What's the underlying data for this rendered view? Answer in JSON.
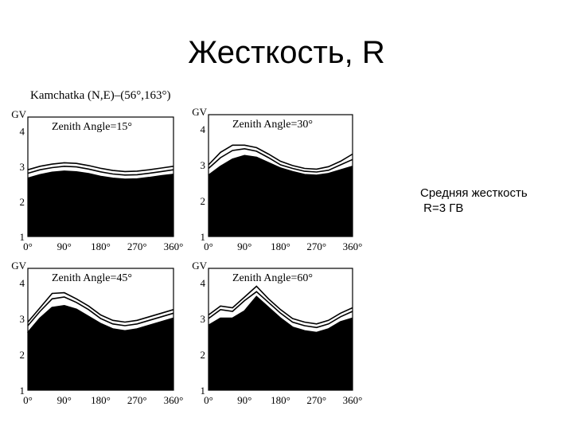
{
  "slide": {
    "title": "Жесткость, R",
    "figure_caption": "Kamchatka (N,E)–(56°,163°)",
    "note_line1": "Средняя жесткость",
    "note_line2": " R=3 ГВ"
  },
  "chart_data": [
    {
      "type": "area",
      "title": "Zenith Angle=15°",
      "ylabel": "GV",
      "ylim": [
        1,
        4.4
      ],
      "xlim": [
        0,
        360
      ],
      "y_ticks": [
        "1",
        "2",
        "3",
        "4"
      ],
      "x_ticks": [
        "0°",
        "90°",
        "180°",
        "270°",
        "360°"
      ],
      "x": [
        0,
        30,
        60,
        90,
        120,
        150,
        180,
        210,
        240,
        270,
        300,
        330,
        360
      ],
      "series": [
        {
          "values": [
            2.65,
            2.75,
            2.82,
            2.85,
            2.83,
            2.78,
            2.7,
            2.65,
            2.62,
            2.63,
            2.67,
            2.72,
            2.76
          ]
        },
        {
          "values": [
            2.8,
            2.9,
            2.96,
            3.0,
            2.98,
            2.92,
            2.84,
            2.78,
            2.75,
            2.76,
            2.8,
            2.85,
            2.9
          ]
        },
        {
          "values": [
            2.9,
            3.0,
            3.06,
            3.1,
            3.08,
            3.02,
            2.94,
            2.88,
            2.85,
            2.86,
            2.9,
            2.95,
            3.0
          ]
        }
      ]
    },
    {
      "type": "area",
      "title": "Zenith Angle=30°",
      "ylabel": "GV",
      "ylim": [
        1,
        4.4
      ],
      "xlim": [
        0,
        360
      ],
      "y_ticks": [
        "1",
        "2",
        "3",
        "4"
      ],
      "x_ticks": [
        "0°",
        "90°",
        "180°",
        "270°",
        "360°"
      ],
      "x": [
        0,
        30,
        60,
        90,
        120,
        150,
        180,
        210,
        240,
        270,
        300,
        330,
        360
      ],
      "series": [
        {
          "values": [
            2.7,
            2.95,
            3.15,
            3.25,
            3.2,
            3.05,
            2.9,
            2.8,
            2.72,
            2.7,
            2.75,
            2.85,
            2.95
          ]
        },
        {
          "values": [
            2.9,
            3.2,
            3.4,
            3.45,
            3.38,
            3.2,
            3.0,
            2.9,
            2.82,
            2.8,
            2.85,
            3.0,
            3.15
          ]
        },
        {
          "values": [
            3.0,
            3.35,
            3.55,
            3.55,
            3.48,
            3.3,
            3.1,
            2.98,
            2.9,
            2.88,
            2.95,
            3.1,
            3.3
          ]
        }
      ]
    },
    {
      "type": "area",
      "title": "Zenith Angle=45°",
      "ylabel": "GV",
      "ylim": [
        1,
        4.4
      ],
      "xlim": [
        0,
        360
      ],
      "y_ticks": [
        "1",
        "2",
        "3",
        "4"
      ],
      "x_ticks": [
        "0°",
        "90°",
        "180°",
        "270°",
        "360°"
      ],
      "x": [
        0,
        30,
        60,
        90,
        120,
        150,
        180,
        210,
        240,
        270,
        300,
        330,
        360
      ],
      "series": [
        {
          "values": [
            2.6,
            3.0,
            3.3,
            3.35,
            3.25,
            3.05,
            2.85,
            2.7,
            2.65,
            2.7,
            2.8,
            2.9,
            3.0
          ]
        },
        {
          "values": [
            2.8,
            3.2,
            3.55,
            3.6,
            3.45,
            3.25,
            3.0,
            2.85,
            2.8,
            2.85,
            2.95,
            3.05,
            3.15
          ]
        },
        {
          "values": [
            2.9,
            3.3,
            3.7,
            3.72,
            3.55,
            3.35,
            3.1,
            2.95,
            2.9,
            2.95,
            3.05,
            3.15,
            3.25
          ]
        }
      ]
    },
    {
      "type": "area",
      "title": "Zenith Angle=60°",
      "ylabel": "GV",
      "ylim": [
        1,
        4.4
      ],
      "xlim": [
        0,
        360
      ],
      "y_ticks": [
        "1",
        "2",
        "3",
        "4"
      ],
      "x_ticks": [
        "0°",
        "90°",
        "180°",
        "270°",
        "360°"
      ],
      "x": [
        0,
        30,
        60,
        90,
        120,
        150,
        180,
        210,
        240,
        270,
        300,
        330,
        360
      ],
      "series": [
        {
          "values": [
            2.8,
            3.0,
            3.0,
            3.2,
            3.6,
            3.3,
            3.0,
            2.75,
            2.65,
            2.6,
            2.7,
            2.9,
            3.0
          ]
        },
        {
          "values": [
            3.0,
            3.25,
            3.2,
            3.5,
            3.75,
            3.45,
            3.15,
            2.9,
            2.8,
            2.75,
            2.85,
            3.05,
            3.2
          ]
        },
        {
          "values": [
            3.1,
            3.35,
            3.3,
            3.6,
            3.9,
            3.55,
            3.25,
            3.0,
            2.9,
            2.85,
            2.95,
            3.15,
            3.3
          ]
        }
      ]
    }
  ]
}
